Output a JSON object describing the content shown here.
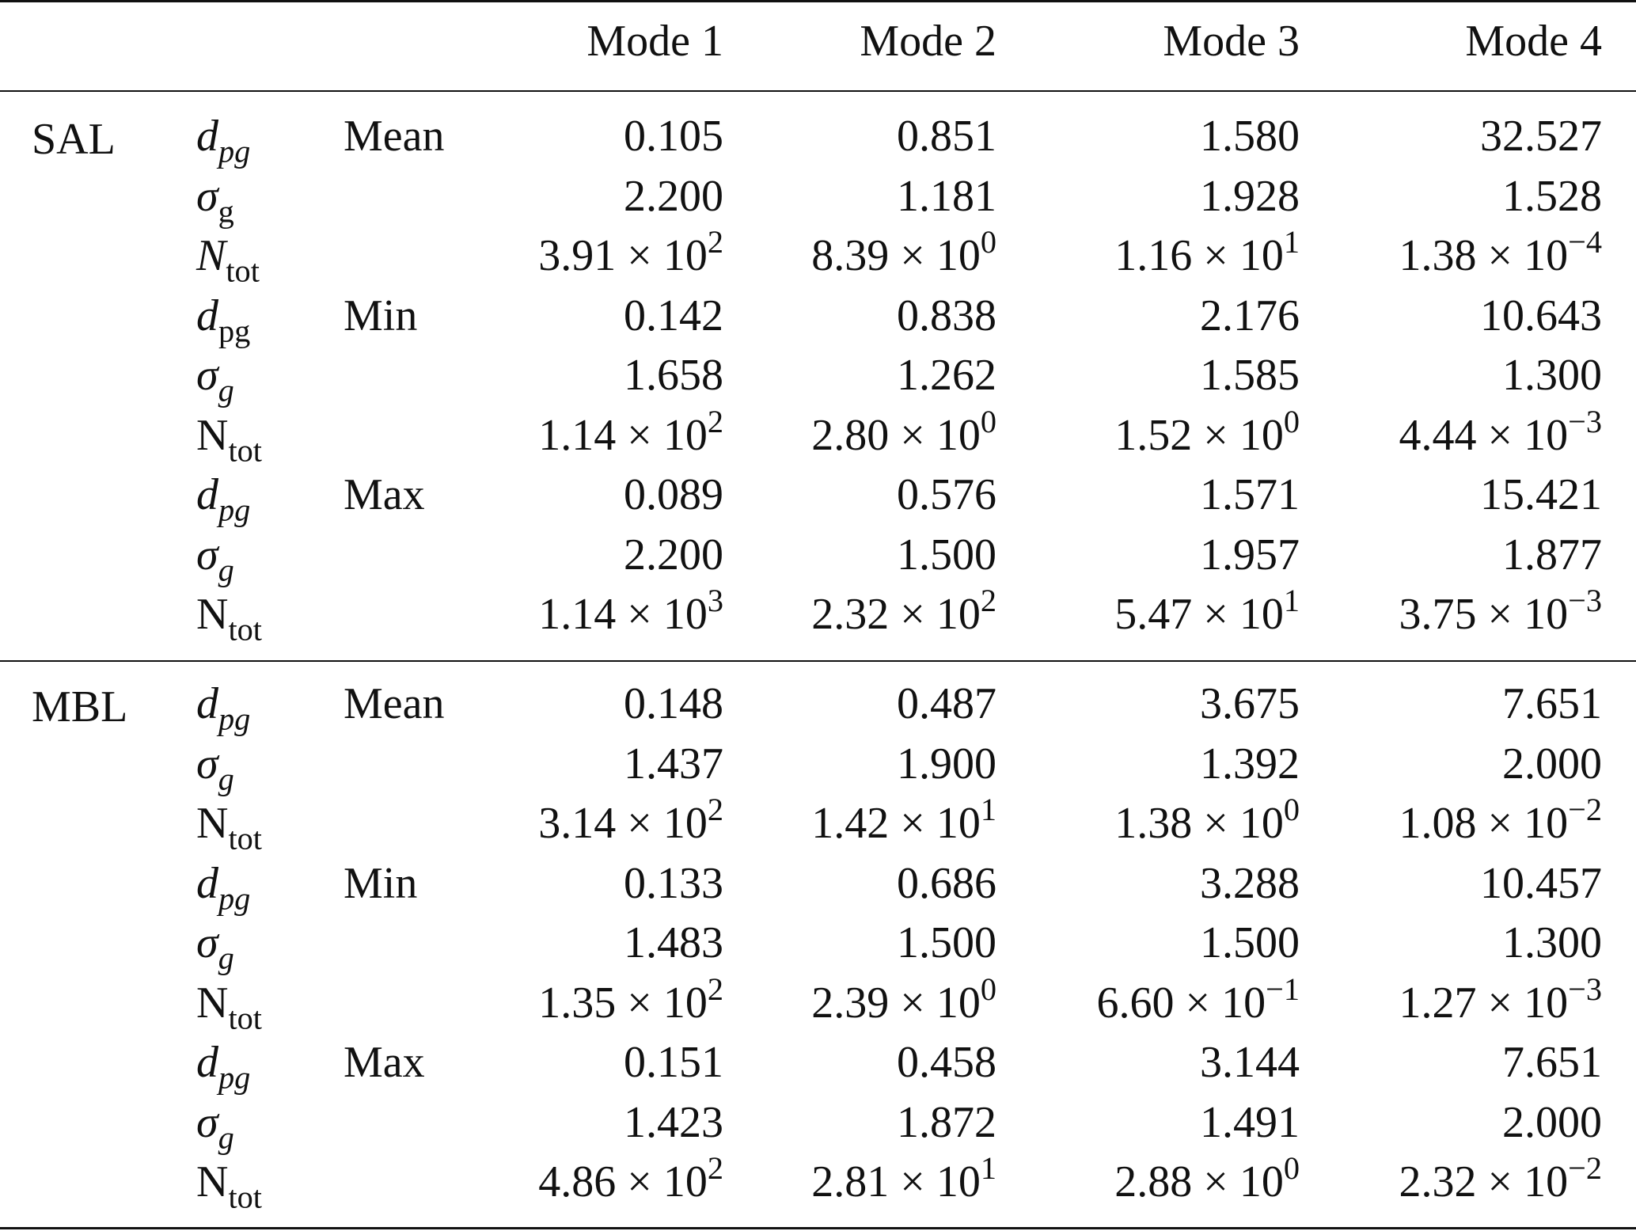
{
  "header": [
    "",
    "",
    "",
    "Mode 1",
    "Mode 2",
    "Mode 3",
    "Mode 4"
  ],
  "groups": [
    {
      "name": "SAL",
      "rows": [
        {
          "var": "d",
          "var_sub": "pg",
          "var_italic": true,
          "sub_italic": true,
          "stat": "Mean",
          "cells": [
            {
              "v": "0.105"
            },
            {
              "v": "0.851"
            },
            {
              "v": "1.580"
            },
            {
              "v": "32.527"
            }
          ]
        },
        {
          "var": "σ",
          "var_sub": "g",
          "var_italic": true,
          "sub_italic": false,
          "stat": "",
          "cells": [
            {
              "v": "2.200"
            },
            {
              "v": "1.181"
            },
            {
              "v": "1.928"
            },
            {
              "v": "1.528"
            }
          ]
        },
        {
          "var": "N",
          "var_sub": "tot",
          "var_italic": true,
          "sub_italic": false,
          "stat": "",
          "cells": [
            {
              "m": "3.91",
              "e": "2"
            },
            {
              "m": "8.39",
              "e": "0"
            },
            {
              "m": "1.16",
              "e": "1"
            },
            {
              "m": "1.38",
              "e": "−4"
            }
          ]
        },
        {
          "var": "d",
          "var_sub": "pg",
          "var_italic": true,
          "sub_italic": false,
          "stat": "Min",
          "cells": [
            {
              "v": "0.142"
            },
            {
              "v": "0.838"
            },
            {
              "v": "2.176"
            },
            {
              "v": "10.643"
            }
          ]
        },
        {
          "var": "σ",
          "var_sub": "g",
          "var_italic": true,
          "sub_italic": true,
          "stat": "",
          "cells": [
            {
              "v": "1.658"
            },
            {
              "v": "1.262"
            },
            {
              "v": "1.585"
            },
            {
              "v": "1.300"
            }
          ]
        },
        {
          "var": "N",
          "var_sub": "tot",
          "var_italic": false,
          "sub_italic": false,
          "stat": "",
          "cells": [
            {
              "m": "1.14",
              "e": "2"
            },
            {
              "m": "2.80",
              "e": "0"
            },
            {
              "m": "1.52",
              "e": "0"
            },
            {
              "m": "4.44",
              "e": "−3"
            }
          ]
        },
        {
          "var": "d",
          "var_sub": "pg",
          "var_italic": true,
          "sub_italic": true,
          "stat": "Max",
          "cells": [
            {
              "v": "0.089"
            },
            {
              "v": "0.576"
            },
            {
              "v": "1.571"
            },
            {
              "v": "15.421"
            }
          ]
        },
        {
          "var": "σ",
          "var_sub": "g",
          "var_italic": true,
          "sub_italic": true,
          "stat": "",
          "cells": [
            {
              "v": "2.200"
            },
            {
              "v": "1.500"
            },
            {
              "v": "1.957"
            },
            {
              "v": "1.877"
            }
          ]
        },
        {
          "var": "N",
          "var_sub": "tot",
          "var_italic": false,
          "sub_italic": false,
          "stat": "",
          "cells": [
            {
              "m": "1.14",
              "e": "3"
            },
            {
              "m": "2.32",
              "e": "2"
            },
            {
              "m": "5.47",
              "e": "1"
            },
            {
              "m": "3.75",
              "e": "−3"
            }
          ]
        }
      ]
    },
    {
      "name": "MBL",
      "rows": [
        {
          "var": "d",
          "var_sub": "pg",
          "var_italic": true,
          "sub_italic": true,
          "stat": "Mean",
          "cells": [
            {
              "v": "0.148"
            },
            {
              "v": "0.487"
            },
            {
              "v": "3.675"
            },
            {
              "v": "7.651"
            }
          ]
        },
        {
          "var": "σ",
          "var_sub": "g",
          "var_italic": true,
          "sub_italic": true,
          "stat": "",
          "cells": [
            {
              "v": "1.437"
            },
            {
              "v": "1.900"
            },
            {
              "v": "1.392"
            },
            {
              "v": "2.000"
            }
          ]
        },
        {
          "var": "N",
          "var_sub": "tot",
          "var_italic": false,
          "sub_italic": false,
          "stat": "",
          "cells": [
            {
              "m": "3.14",
              "e": "2"
            },
            {
              "m": "1.42",
              "e": "1"
            },
            {
              "m": "1.38",
              "e": "0"
            },
            {
              "m": "1.08",
              "e": "−2"
            }
          ]
        },
        {
          "var": "d",
          "var_sub": "pg",
          "var_italic": true,
          "sub_italic": true,
          "stat": "Min",
          "cells": [
            {
              "v": "0.133"
            },
            {
              "v": "0.686"
            },
            {
              "v": "3.288"
            },
            {
              "v": "10.457"
            }
          ]
        },
        {
          "var": "σ",
          "var_sub": "g",
          "var_italic": true,
          "sub_italic": true,
          "stat": "",
          "cells": [
            {
              "v": "1.483"
            },
            {
              "v": "1.500"
            },
            {
              "v": "1.500"
            },
            {
              "v": "1.300"
            }
          ]
        },
        {
          "var": "N",
          "var_sub": "tot",
          "var_italic": false,
          "sub_italic": false,
          "stat": "",
          "cells": [
            {
              "m": "1.35",
              "e": "2"
            },
            {
              "m": "2.39",
              "e": "0"
            },
            {
              "m": "6.60",
              "e": "−1"
            },
            {
              "m": "1.27",
              "e": "−3"
            }
          ]
        },
        {
          "var": "d",
          "var_sub": "pg",
          "var_italic": true,
          "sub_italic": true,
          "stat": "Max",
          "cells": [
            {
              "v": "0.151"
            },
            {
              "v": "0.458"
            },
            {
              "v": "3.144"
            },
            {
              "v": "7.651"
            }
          ]
        },
        {
          "var": "σ",
          "var_sub": "g",
          "var_italic": true,
          "sub_italic": true,
          "stat": "",
          "cells": [
            {
              "v": "1.423"
            },
            {
              "v": "1.872"
            },
            {
              "v": "1.491"
            },
            {
              "v": "2.000"
            }
          ]
        },
        {
          "var": "N",
          "var_sub": "tot",
          "var_italic": false,
          "sub_italic": false,
          "stat": "",
          "cells": [
            {
              "m": "4.86",
              "e": "2"
            },
            {
              "m": "2.81",
              "e": "1"
            },
            {
              "m": "2.88",
              "e": "0"
            },
            {
              "m": "2.32",
              "e": "−2"
            }
          ]
        }
      ]
    }
  ]
}
